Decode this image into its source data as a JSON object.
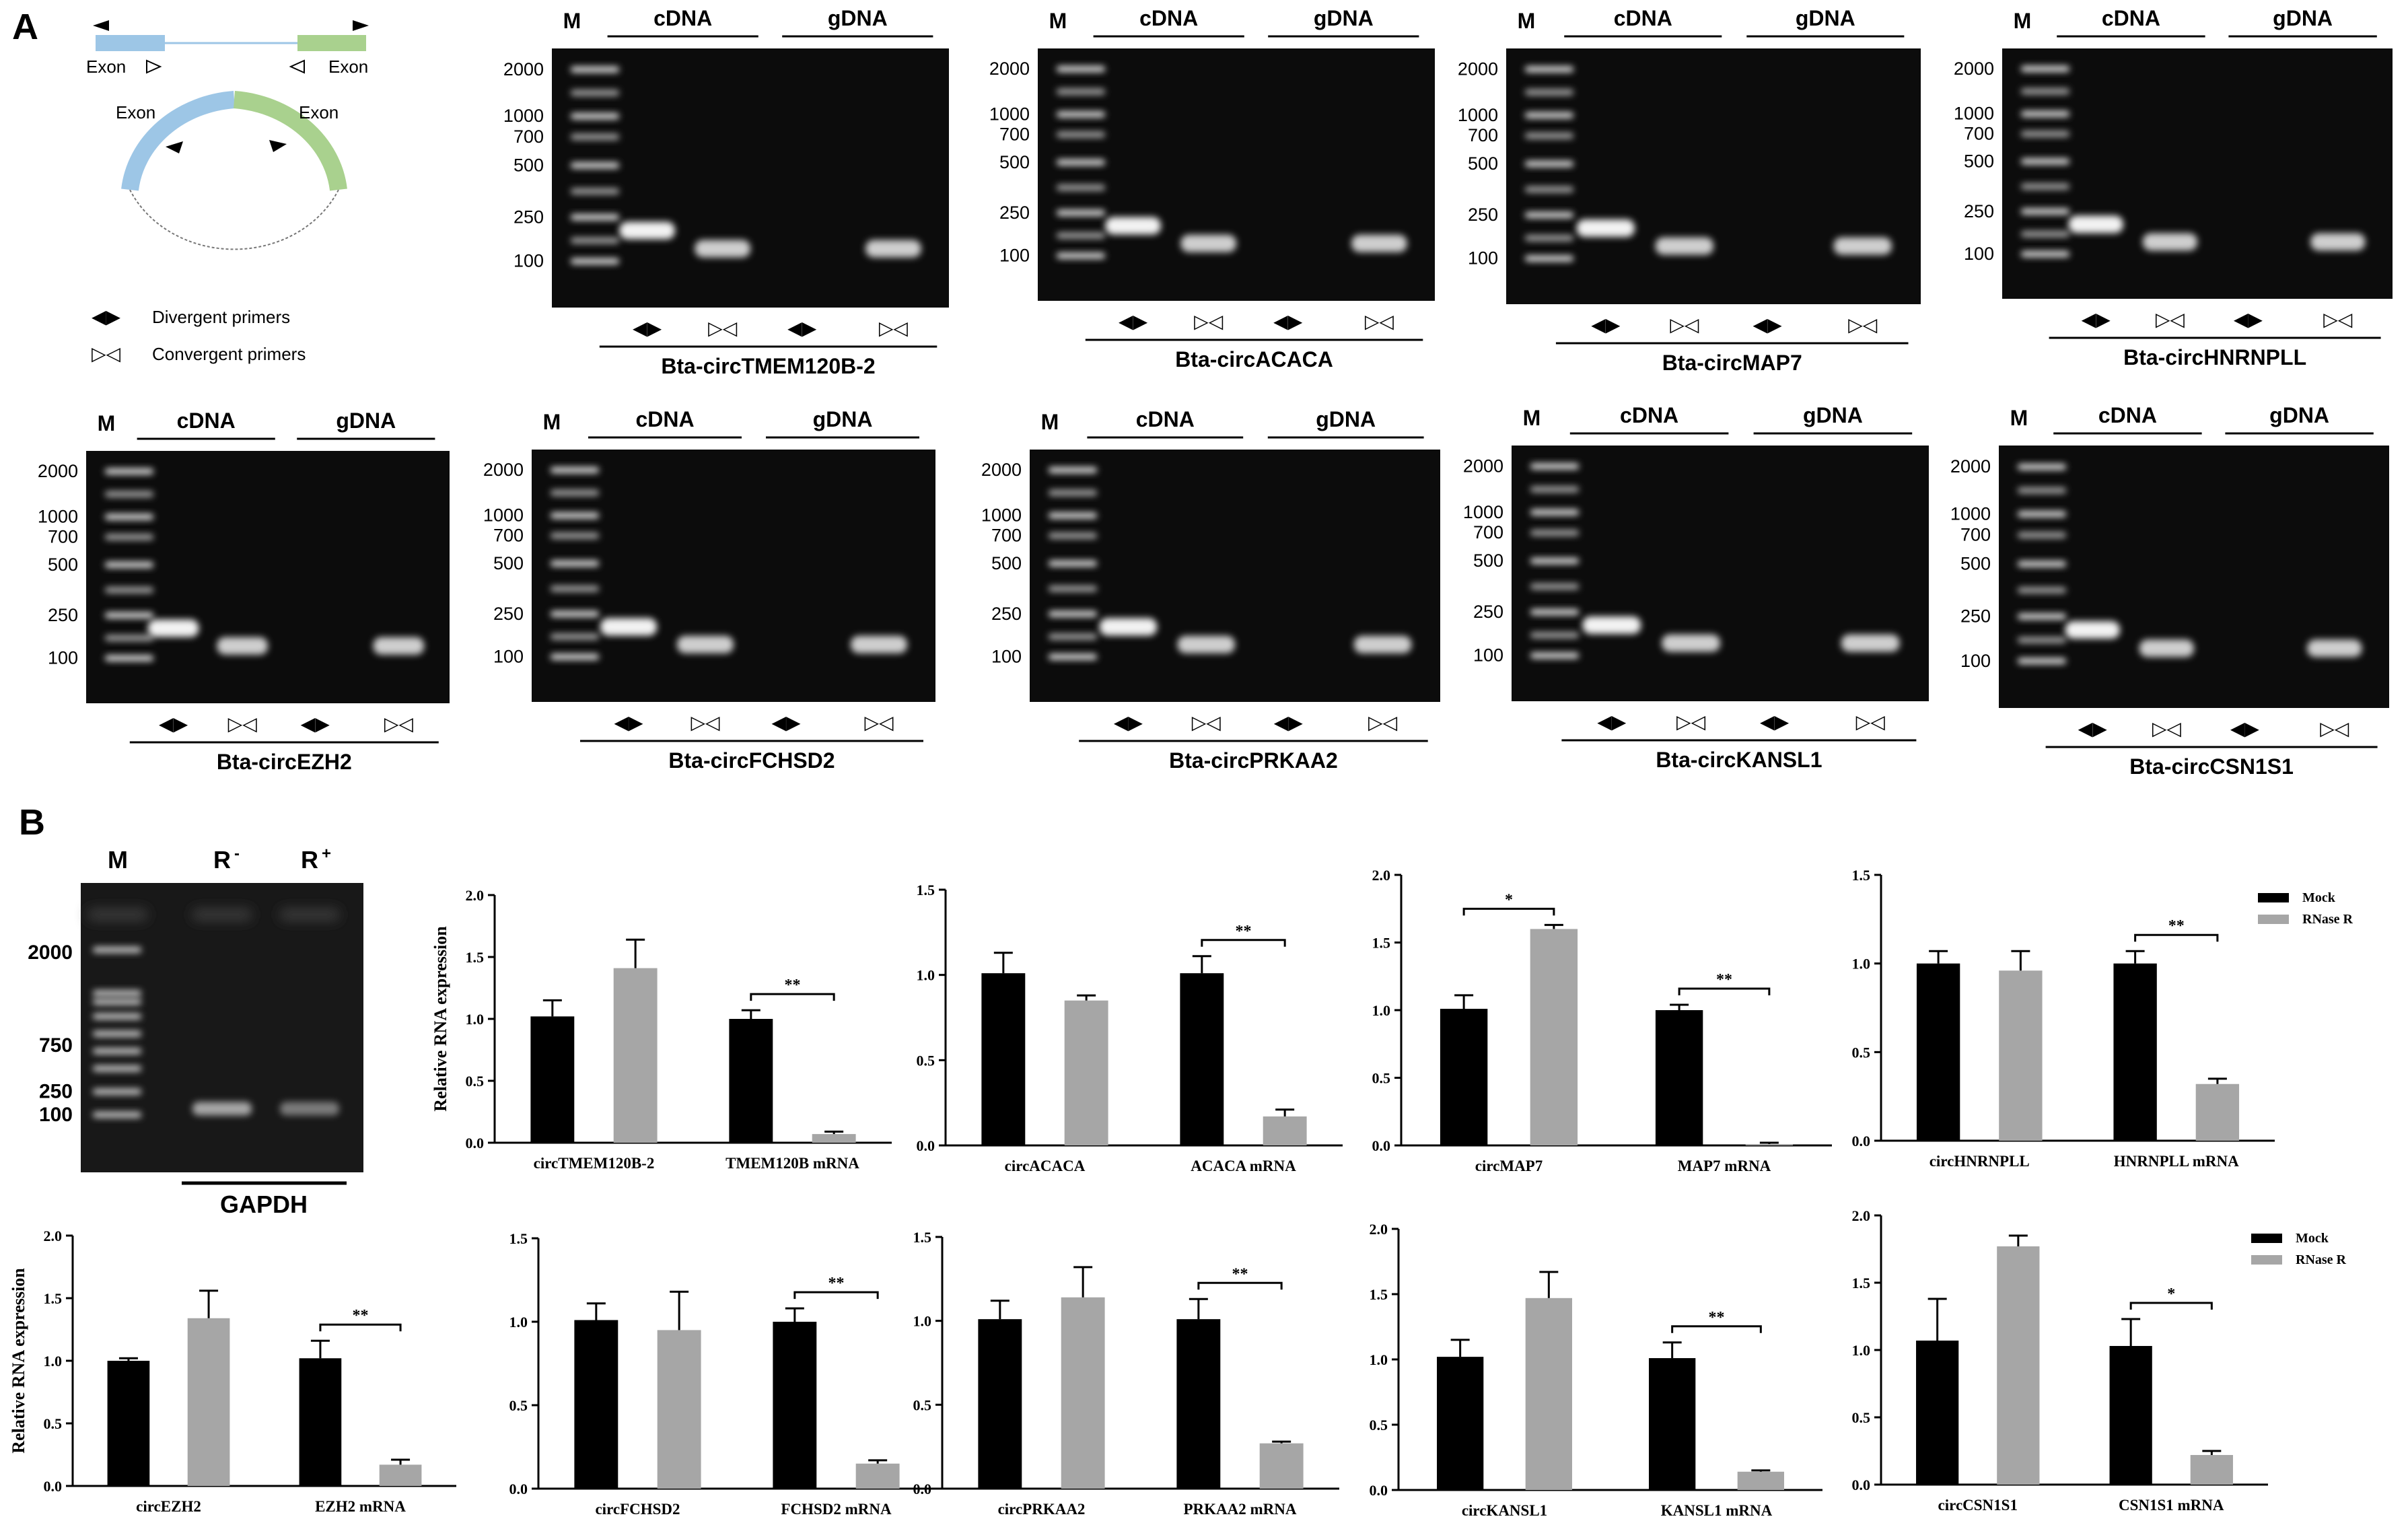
{
  "panel_labels": {
    "a": "A",
    "b": "B"
  },
  "schematic": {
    "exon_left": "Exon",
    "exon_right": "Exon",
    "arc_exon_left": "Exon",
    "arc_exon_right": "Exon",
    "legend_divergent": "Divergent primers",
    "legend_convergent": "Convergent primers",
    "colors": {
      "exon_blue": "#9dc6e6",
      "exon_green": "#a9d18e"
    }
  },
  "gel_common": {
    "marker": "M",
    "cdna": "cDNA",
    "gdna": "gDNA",
    "primer_symbols": [
      "◀▶",
      "▷◁",
      "◀▶",
      "▷◁"
    ]
  },
  "gels": [
    {
      "name": "Bta-circTMEM120B-2",
      "ladder_labels": [
        "2000",
        "1000",
        "700",
        "500",
        "250",
        "100"
      ],
      "bands": [
        1,
        1,
        0,
        1
      ]
    },
    {
      "name": "Bta-circACACA",
      "ladder_labels": [
        "2000",
        "1000",
        "700",
        "500",
        "250",
        "100"
      ],
      "bands": [
        1,
        1,
        0,
        1
      ]
    },
    {
      "name": "Bta-circMAP7",
      "ladder_labels": [
        "2000",
        "1000",
        "700",
        "500",
        "250",
        "100"
      ],
      "bands": [
        1,
        1,
        0,
        1
      ]
    },
    {
      "name": "Bta-circHNRNPLL",
      "ladder_labels": [
        "2000",
        "1000",
        "700",
        "500",
        "250",
        "100"
      ],
      "bands": [
        1,
        1,
        0,
        1
      ]
    },
    {
      "name": "Bta-circEZH2",
      "ladder_labels": [
        "2000",
        "1000",
        "700",
        "500",
        "250",
        "100"
      ],
      "bands": [
        1,
        1,
        0,
        1
      ]
    },
    {
      "name": "Bta-circFCHSD2",
      "ladder_labels": [
        "2000",
        "1000",
        "700",
        "500",
        "250",
        "100"
      ],
      "bands": [
        1,
        1,
        0,
        1
      ]
    },
    {
      "name": "Bta-circPRKAA2",
      "ladder_labels": [
        "2000",
        "1000",
        "700",
        "500",
        "250",
        "100"
      ],
      "bands": [
        1,
        1,
        0,
        1
      ]
    },
    {
      "name": "Bta-circKANSL1",
      "ladder_labels": [
        "2000",
        "1000",
        "700",
        "500",
        "250",
        "100"
      ],
      "bands": [
        1,
        1,
        0,
        1
      ]
    },
    {
      "name": "Bta-circCSN1S1",
      "ladder_labels": [
        "2000",
        "1000",
        "700",
        "500",
        "250",
        "100"
      ],
      "bands": [
        1,
        1,
        0,
        1
      ]
    }
  ],
  "gapdh_gel": {
    "lanes": [
      "M",
      "R",
      "R"
    ],
    "superscripts": [
      "",
      "-",
      "+"
    ],
    "ladder_labels": [
      "2000",
      "750",
      "250",
      "100"
    ],
    "caption": "GAPDH"
  },
  "chart_data": [
    {
      "type": "bar",
      "categories": [
        "circTMEM120B-2",
        "TMEM120B mRNA"
      ],
      "series": [
        {
          "name": "Mock",
          "values": [
            1.02,
            1.0
          ],
          "errors": [
            0.13,
            0.07
          ]
        },
        {
          "name": "RNase R",
          "values": [
            1.41,
            0.07
          ],
          "errors": [
            0.23,
            0.02
          ]
        }
      ],
      "ylabel": "Relative RNA expression",
      "ylim": [
        0,
        2.0
      ],
      "yticks": [
        "0.0",
        "0.5",
        "1.0",
        "1.5",
        "2.0"
      ],
      "significance": [
        {
          "category": 1,
          "label": "**"
        }
      ],
      "legend": null
    },
    {
      "type": "bar",
      "categories": [
        "circACACA",
        "ACACA mRNA"
      ],
      "series": [
        {
          "name": "Mock",
          "values": [
            1.01,
            1.01
          ],
          "errors": [
            0.12,
            0.1
          ]
        },
        {
          "name": "RNase R",
          "values": [
            0.85,
            0.17
          ],
          "errors": [
            0.03,
            0.04
          ]
        }
      ],
      "ylabel": "",
      "ylim": [
        0,
        1.5
      ],
      "yticks": [
        "0.0",
        "0.5",
        "1.0",
        "1.5"
      ],
      "significance": [
        {
          "category": 1,
          "label": "**"
        }
      ],
      "legend": null
    },
    {
      "type": "bar",
      "categories": [
        "circMAP7",
        "MAP7 mRNA"
      ],
      "series": [
        {
          "name": "Mock",
          "values": [
            1.01,
            1.0
          ],
          "errors": [
            0.1,
            0.04
          ]
        },
        {
          "name": "RNase R",
          "values": [
            1.6,
            0.01
          ],
          "errors": [
            0.03,
            0.01
          ]
        }
      ],
      "ylabel": "",
      "ylim": [
        0,
        2.0
      ],
      "yticks": [
        "0.0",
        "0.5",
        "1.0",
        "1.5",
        "2.0"
      ],
      "significance": [
        {
          "category": 0,
          "label": "*"
        },
        {
          "category": 1,
          "label": "**"
        }
      ],
      "legend": null
    },
    {
      "type": "bar",
      "categories": [
        "circHNRNPLL",
        "HNRNPLL mRNA"
      ],
      "series": [
        {
          "name": "Mock",
          "values": [
            1.0,
            1.0
          ],
          "errors": [
            0.07,
            0.07
          ]
        },
        {
          "name": "RNase R",
          "values": [
            0.96,
            0.32
          ],
          "errors": [
            0.11,
            0.03
          ]
        }
      ],
      "ylabel": "",
      "ylim": [
        0,
        1.5
      ],
      "yticks": [
        "0.0",
        "0.5",
        "1.0",
        "1.5"
      ],
      "significance": [
        {
          "category": 1,
          "label": "**"
        }
      ],
      "legend": {
        "entries": [
          "Mock",
          "RNase R"
        ],
        "placement": "top-right"
      }
    },
    {
      "type": "bar",
      "categories": [
        "circEZH2",
        "EZH2 mRNA"
      ],
      "series": [
        {
          "name": "Mock",
          "values": [
            1.0,
            1.02
          ],
          "errors": [
            0.02,
            0.14
          ]
        },
        {
          "name": "RNase R",
          "values": [
            1.34,
            0.17
          ],
          "errors": [
            0.22,
            0.04
          ]
        }
      ],
      "ylabel": "Relative RNA expression",
      "ylim": [
        0,
        2.0
      ],
      "yticks": [
        "0.0",
        "0.5",
        "1.0",
        "1.5",
        "2.0"
      ],
      "significance": [
        {
          "category": 1,
          "label": "**"
        }
      ],
      "legend": null
    },
    {
      "type": "bar",
      "categories": [
        "circFCHSD2",
        "FCHSD2 mRNA"
      ],
      "series": [
        {
          "name": "Mock",
          "values": [
            1.01,
            1.0
          ],
          "errors": [
            0.1,
            0.08
          ]
        },
        {
          "name": "RNase R",
          "values": [
            0.95,
            0.15
          ],
          "errors": [
            0.23,
            0.02
          ]
        }
      ],
      "ylabel": "",
      "ylim": [
        0,
        1.5
      ],
      "yticks": [
        "0.0",
        "0.5",
        "1.0",
        "1.5"
      ],
      "significance": [
        {
          "category": 1,
          "label": "**"
        }
      ],
      "legend": null
    },
    {
      "type": "bar",
      "categories": [
        "circPRKAA2",
        "PRKAA2 mRNA"
      ],
      "series": [
        {
          "name": "Mock",
          "values": [
            1.01,
            1.01
          ],
          "errors": [
            0.11,
            0.12
          ]
        },
        {
          "name": "RNase R",
          "values": [
            1.14,
            0.27
          ],
          "errors": [
            0.18,
            0.01
          ]
        }
      ],
      "ylabel": "",
      "ylim": [
        0,
        1.5
      ],
      "yticks": [
        "0.0",
        "0.5",
        "1.0",
        "1.5"
      ],
      "significance": [
        {
          "category": 1,
          "label": "**"
        }
      ],
      "legend": null
    },
    {
      "type": "bar",
      "categories": [
        "circKANSL1",
        "KANSL1 mRNA"
      ],
      "series": [
        {
          "name": "Mock",
          "values": [
            1.02,
            1.01
          ],
          "errors": [
            0.13,
            0.12
          ]
        },
        {
          "name": "RNase R",
          "values": [
            1.47,
            0.14
          ],
          "errors": [
            0.2,
            0.01
          ]
        }
      ],
      "ylabel": "",
      "ylim": [
        0,
        2.0
      ],
      "yticks": [
        "0.0",
        "0.5",
        "1.0",
        "1.5",
        "2.0"
      ],
      "significance": [
        {
          "category": 1,
          "label": "**"
        }
      ],
      "legend": null
    },
    {
      "type": "bar",
      "categories": [
        "circCSN1S1",
        "CSN1S1 mRNA"
      ],
      "series": [
        {
          "name": "Mock",
          "values": [
            1.07,
            1.03
          ],
          "errors": [
            0.31,
            0.2
          ]
        },
        {
          "name": "RNase R",
          "values": [
            1.77,
            0.22
          ],
          "errors": [
            0.08,
            0.03
          ]
        }
      ],
      "ylabel": "",
      "ylim": [
        0,
        2.0
      ],
      "yticks": [
        "0.0",
        "0.5",
        "1.0",
        "1.5",
        "2.0"
      ],
      "significance": [
        {
          "category": 1,
          "label": "*"
        }
      ],
      "legend": {
        "entries": [
          "Mock",
          "RNase R"
        ],
        "placement": "top-right"
      }
    }
  ]
}
